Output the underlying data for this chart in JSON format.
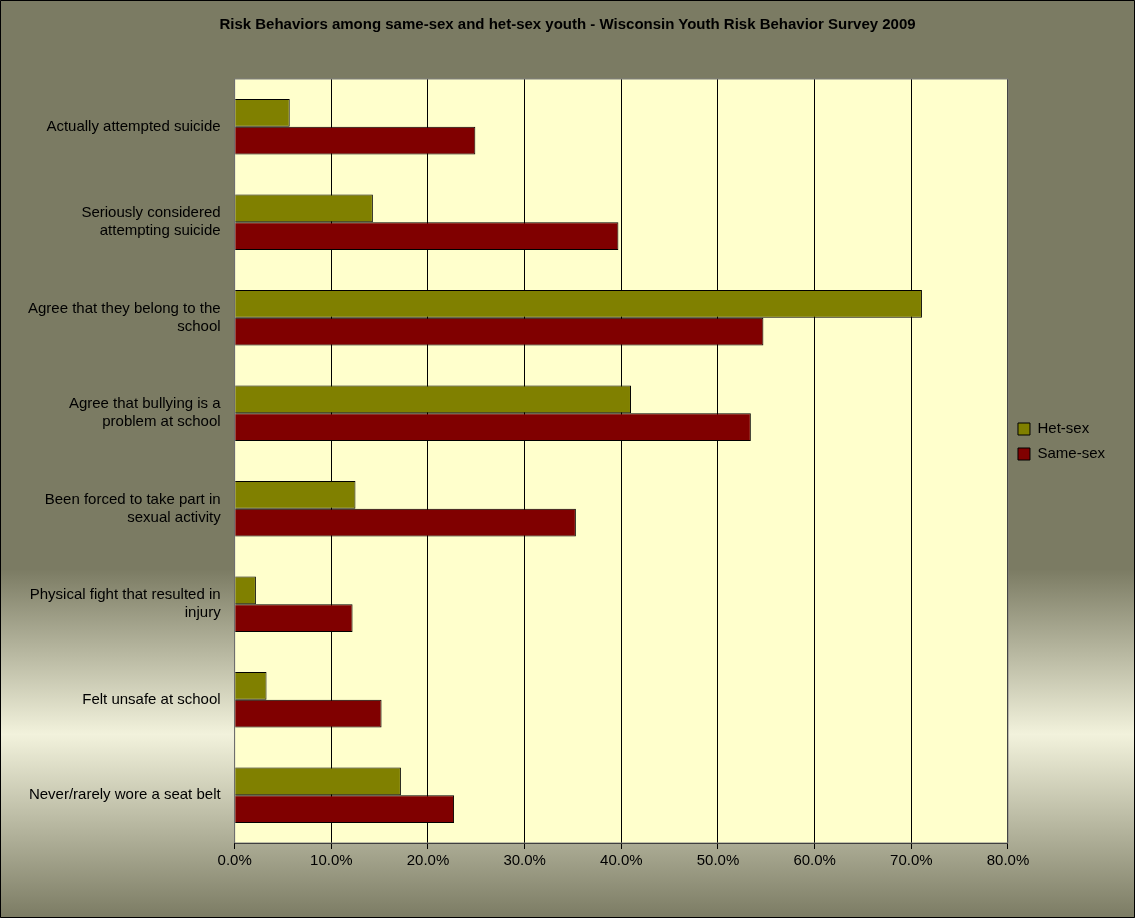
{
  "chart_data": {
    "type": "bar",
    "orientation": "horizontal",
    "title": "Risk Behaviors among same-sex and het-sex youth - Wisconsin Youth Risk Behavior Survey 2009",
    "categories": [
      "Actually attempted suicide",
      "Seriously considered attempting suicide",
      "Agree that they belong to the school",
      "Agree that bullying is a problem at school",
      "Been forced to take part in sexual activity",
      "Physical fight that resulted in injury",
      "Felt unsafe at school",
      "Never/rarely wore a seat belt"
    ],
    "series": [
      {
        "name": "Het-sex",
        "color": "#808000",
        "values": [
          5.7,
          14.3,
          71.1,
          41.0,
          12.5,
          2.2,
          3.3,
          17.2
        ]
      },
      {
        "name": "Same-sex",
        "color": "#800000",
        "values": [
          24.9,
          39.7,
          54.7,
          53.4,
          35.3,
          12.2,
          15.2,
          22.7
        ]
      }
    ],
    "xlim": [
      0,
      80
    ],
    "xticks": [
      {
        "value": 0,
        "label": "0.0%"
      },
      {
        "value": 10,
        "label": "10.0%"
      },
      {
        "value": 20,
        "label": "20.0%"
      },
      {
        "value": 30,
        "label": "30.0%"
      },
      {
        "value": 40,
        "label": "40.0%"
      },
      {
        "value": 50,
        "label": "50.0%"
      },
      {
        "value": 60,
        "label": "60.0%"
      },
      {
        "value": 70,
        "label": "70.0%"
      },
      {
        "value": 80,
        "label": "80.0%"
      }
    ],
    "grid": "x",
    "legend": "right"
  }
}
